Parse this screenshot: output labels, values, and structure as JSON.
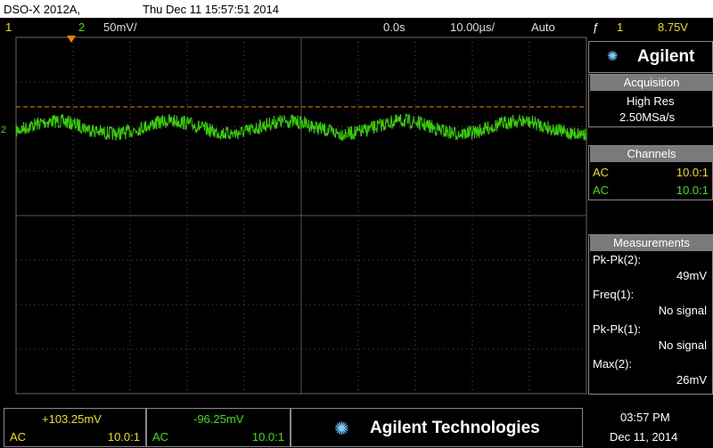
{
  "header": {
    "model": "DSO-X 2012A,",
    "datetime": "Thu Dec 11 15:57:51 2014"
  },
  "status_bar": {
    "ch1": "1",
    "ch2": "2",
    "ch2_scale": "50mV/",
    "time_offset": "0.0s",
    "timebase": "10.00µs/",
    "trigger_mode": "Auto",
    "trigger_channel": "1",
    "trigger_level": "8.75V"
  },
  "sidebar": {
    "brand": "Agilent",
    "acquisition": {
      "title": "Acquisition",
      "mode": "High Res",
      "rate": "2.50MSa/s"
    },
    "channels": {
      "title": "Channels",
      "rows": [
        {
          "coupling": "AC",
          "probe": "10.0:1"
        },
        {
          "coupling": "AC",
          "probe": "10.0:1"
        }
      ]
    },
    "measurements": {
      "title": "Measurements",
      "items": [
        {
          "label": "Pk-Pk(2):",
          "value": "49mV"
        },
        {
          "label": "Freq(1):",
          "value": "No signal"
        },
        {
          "label": "Pk-Pk(1):",
          "value": "No signal"
        },
        {
          "label": "Max(2):",
          "value": "26mV"
        }
      ]
    }
  },
  "footer": {
    "ch1": {
      "value": "+103.25mV",
      "coupling": "AC",
      "probe": "10.0:1"
    },
    "ch2": {
      "value": "-96.25mV",
      "coupling": "AC",
      "probe": "10.0:1"
    },
    "brand": "Agilent Technologies",
    "time": "03:57 PM",
    "date": "Dec 11, 2014"
  }
}
